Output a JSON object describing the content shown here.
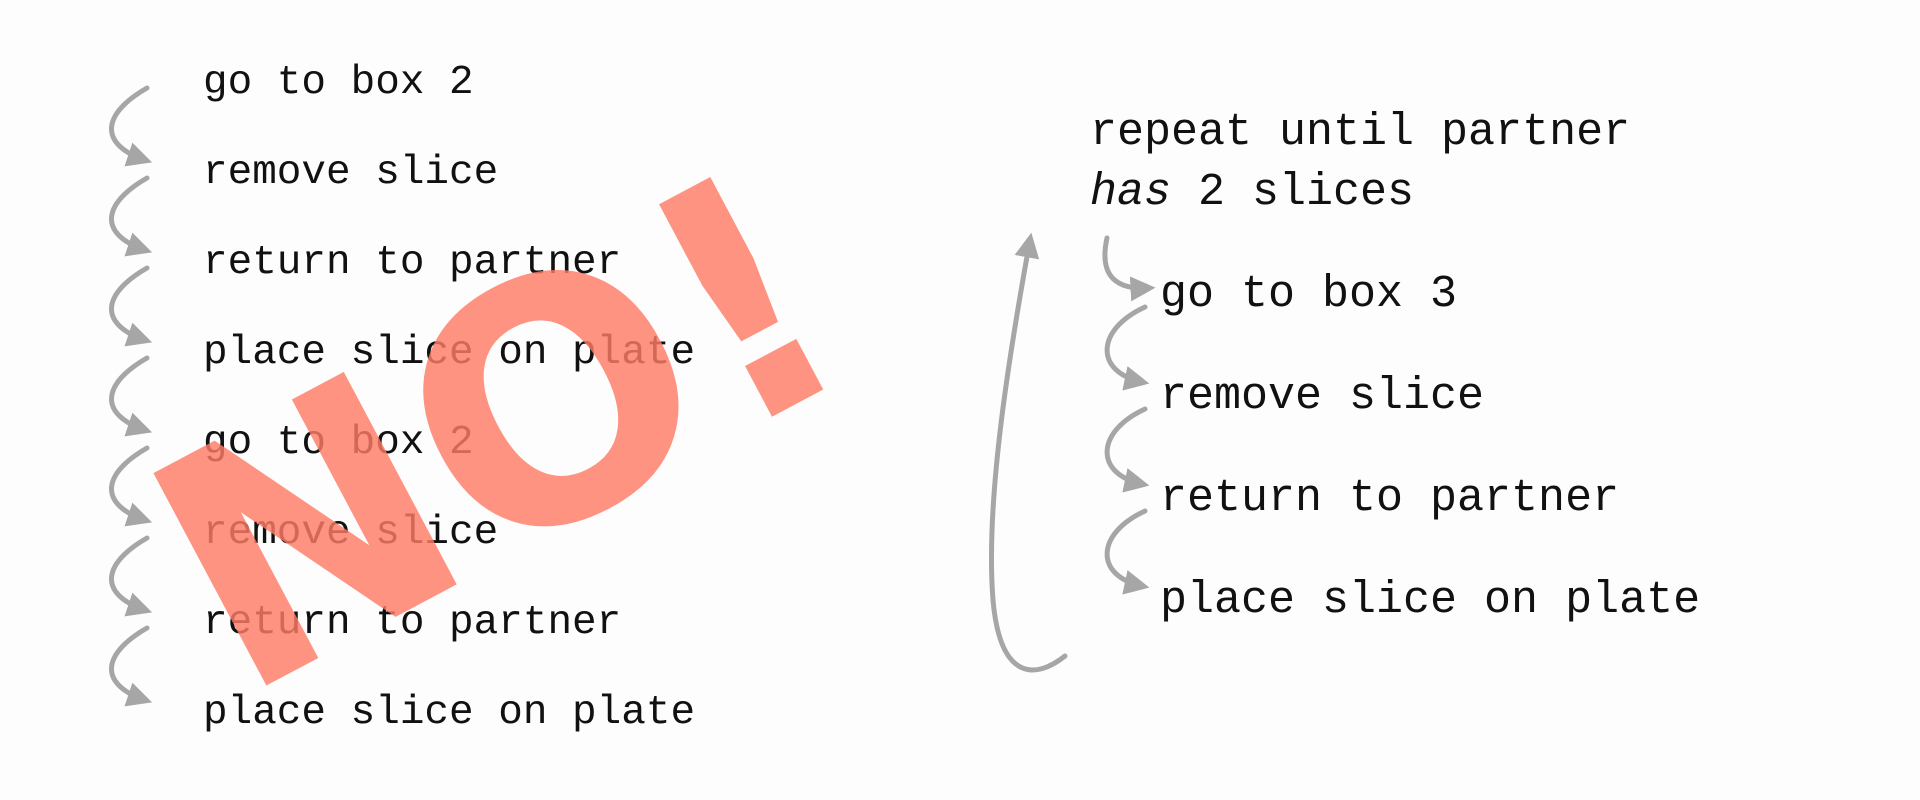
{
  "left_sequence": {
    "steps": [
      "go to box 2",
      "remove slice",
      "return to partner",
      "place slice on plate",
      "go to box 2",
      "remove slice",
      "return to partner",
      "place slice on plate"
    ],
    "stamp_text": "NO!",
    "stamp_color": "#ff7b66"
  },
  "right_loop": {
    "repeat_prefix": "repeat until partner",
    "repeat_emphasis": "has",
    "repeat_suffix": " 2 slices",
    "steps": [
      "go to box 3",
      "remove slice",
      "return to partner",
      "place slice on plate"
    ]
  },
  "arrow_color": "#a6a6a6"
}
